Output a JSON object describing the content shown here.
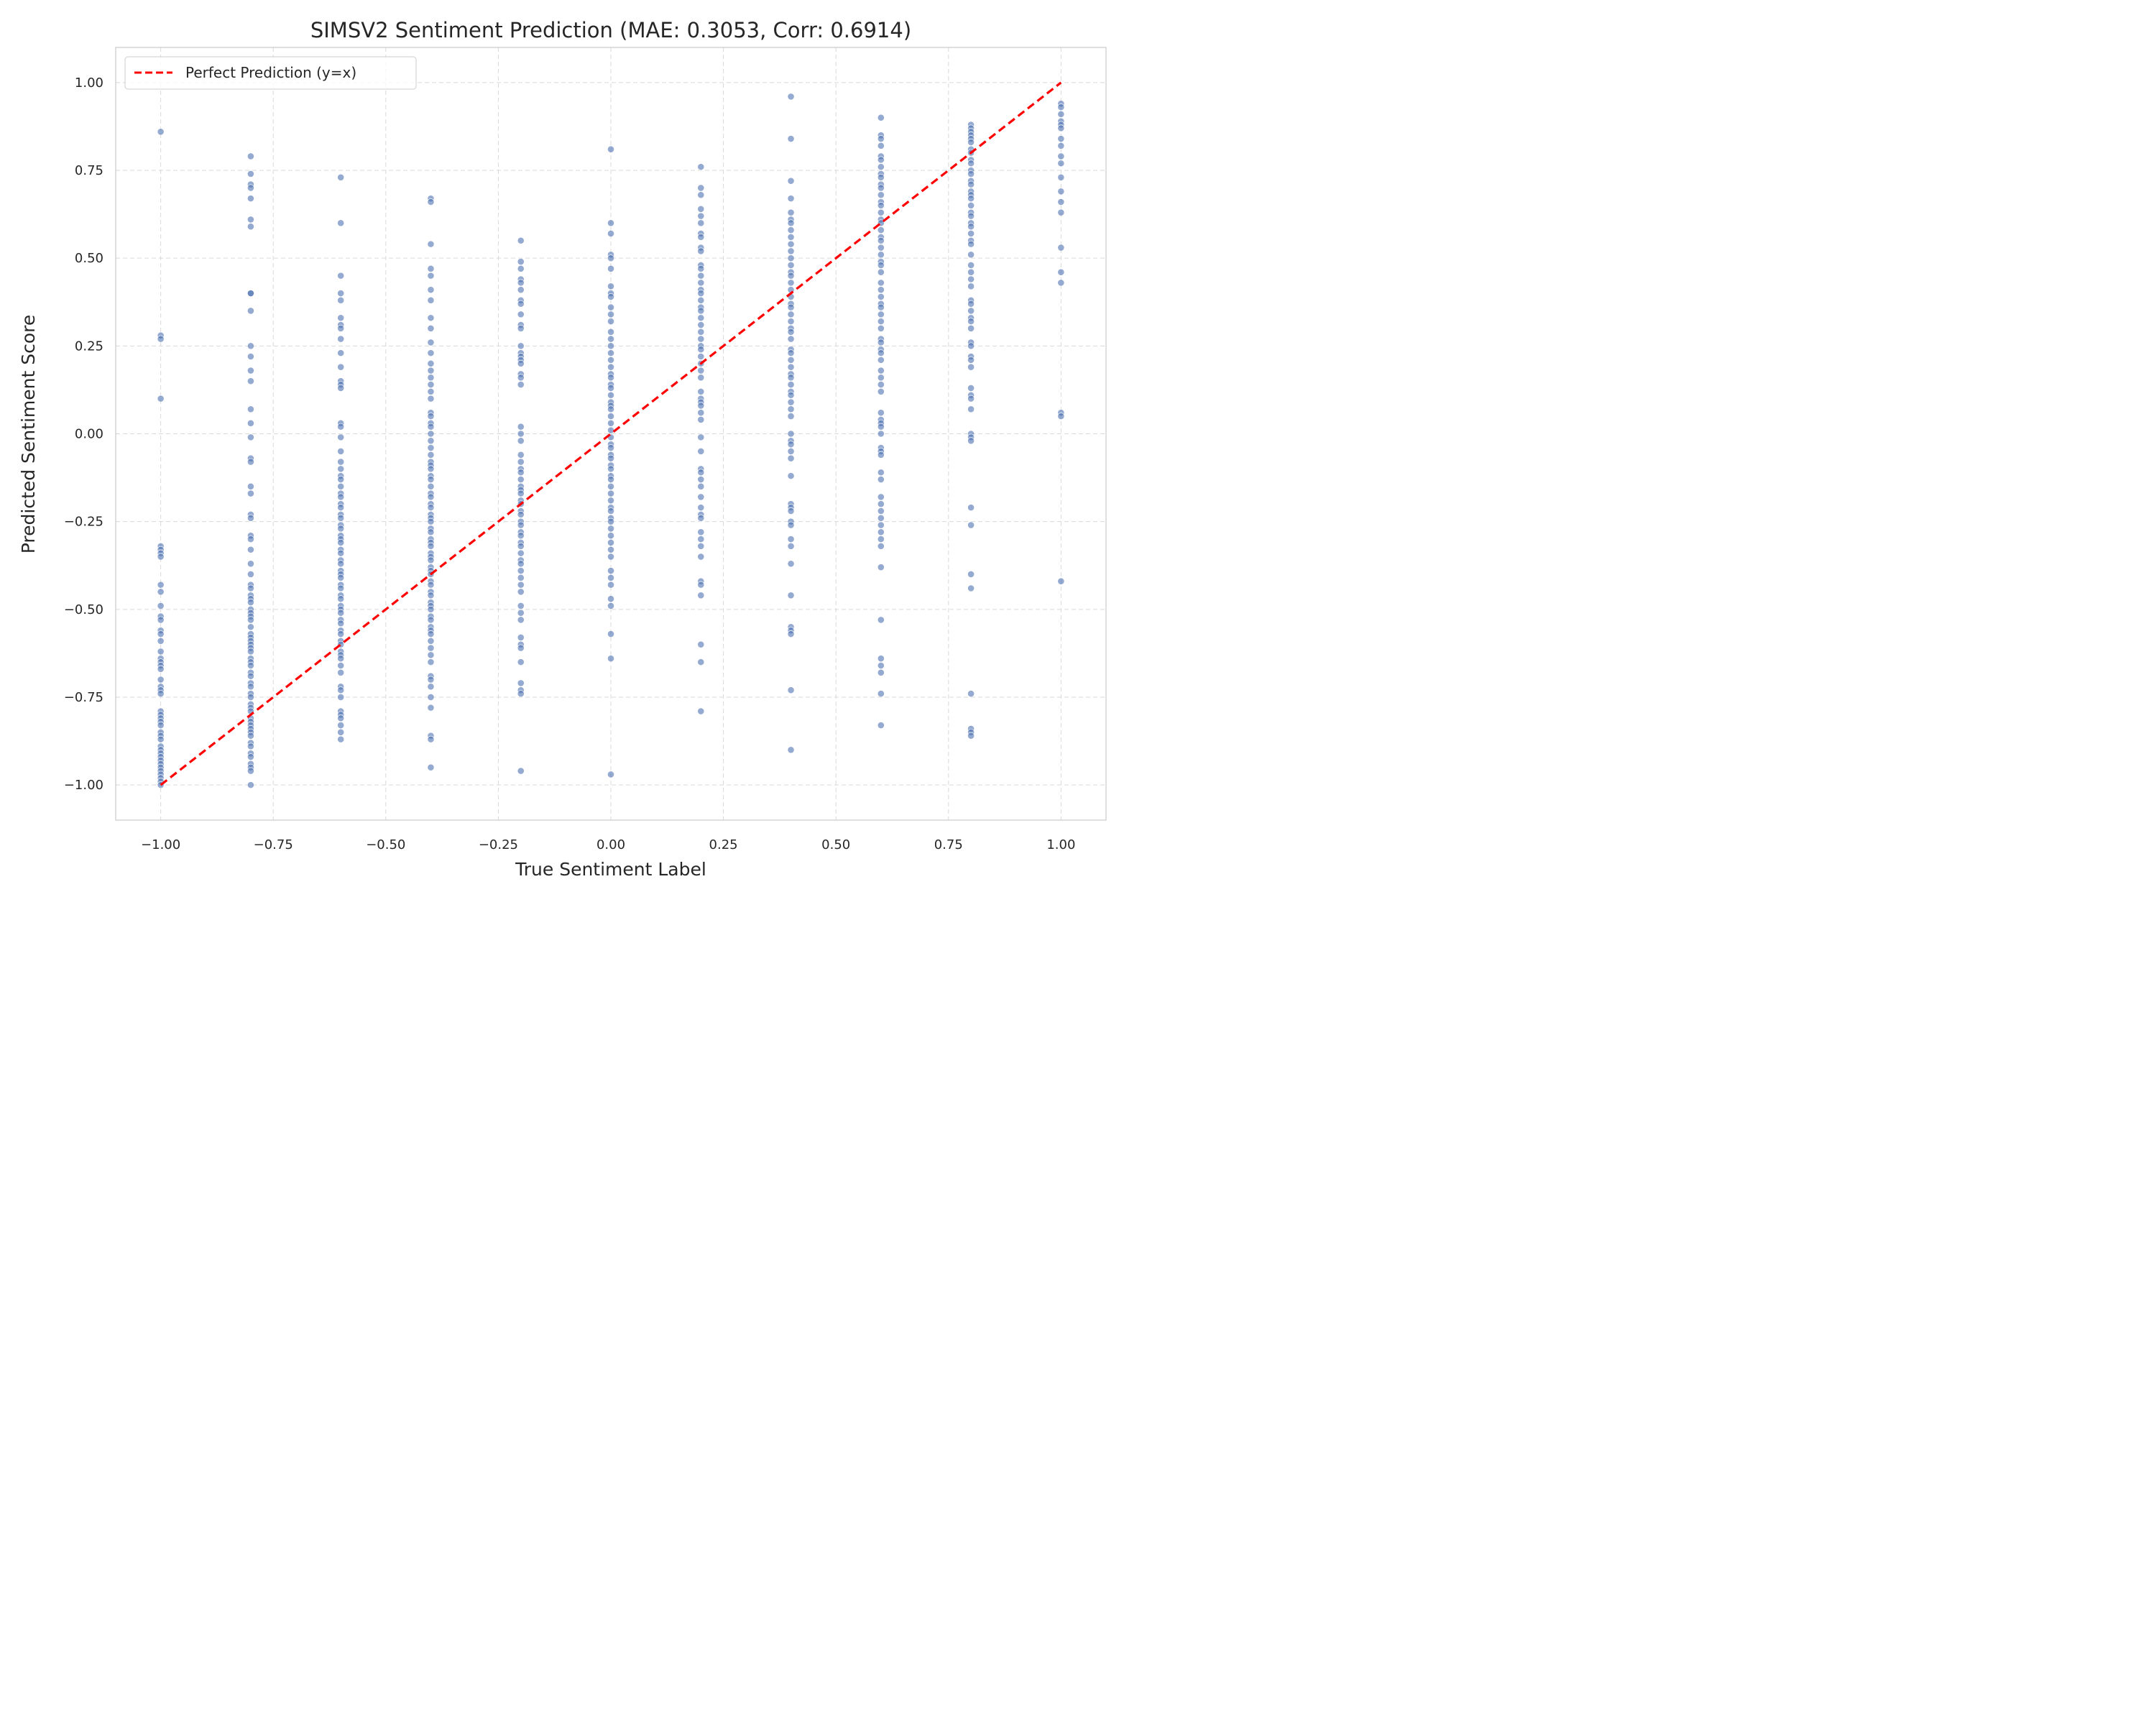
{
  "chart_data": {
    "type": "scatter",
    "title": "SIMSV2 Sentiment Prediction (MAE: 0.3053, Corr: 0.6914)",
    "xlabel": "True Sentiment Label",
    "ylabel": "Predicted Sentiment Score",
    "xlim": [
      -1.1,
      1.1
    ],
    "ylim": [
      -1.1,
      1.1
    ],
    "grid": true,
    "legend_position": "upper-left",
    "x_ticks": [
      -1.0,
      -0.75,
      -0.5,
      -0.25,
      0.0,
      0.25,
      0.5,
      0.75,
      1.0
    ],
    "x_tick_labels": [
      "−1.00",
      "−0.75",
      "−0.50",
      "−0.25",
      "0.00",
      "0.25",
      "0.50",
      "0.75",
      "1.00"
    ],
    "y_ticks": [
      -1.0,
      -0.75,
      -0.5,
      -0.25,
      0.0,
      0.25,
      0.5,
      0.75,
      1.0
    ],
    "y_tick_labels": [
      "−1.00",
      "−0.75",
      "−0.50",
      "−0.25",
      "0.00",
      "0.25",
      "0.50",
      "0.75",
      "1.00"
    ],
    "colors": {
      "points": "#4c72b0",
      "reference_line": "#ff0000",
      "grid": "#d9d9d9",
      "spine": "#cccccc"
    },
    "reference_line": {
      "name": "Perfect Prediction (y=x)",
      "x": [
        -1.0,
        1.0
      ],
      "y": [
        -1.0,
        1.0
      ],
      "style": "dashed"
    },
    "series": [
      {
        "x": -1.0,
        "y": [
          0.86,
          0.28,
          0.27,
          0.1,
          -0.32,
          -0.33,
          -0.34,
          -0.35,
          -0.43,
          -0.45,
          -0.49,
          -0.52,
          -0.53,
          -0.56,
          -0.57,
          -0.59,
          -0.62,
          -0.64,
          -0.65,
          -0.66,
          -0.67,
          -0.7,
          -0.72,
          -0.73,
          -0.74,
          -0.79,
          -0.8,
          -0.81,
          -0.82,
          -0.83,
          -0.85,
          -0.86,
          -0.87,
          -0.89,
          -0.9,
          -0.91,
          -0.92,
          -0.93,
          -0.94,
          -0.95,
          -0.96,
          -0.97,
          -0.98,
          -0.99,
          -1.0
        ]
      },
      {
        "x": -0.8,
        "y": [
          0.79,
          0.74,
          0.71,
          0.7,
          0.67,
          0.61,
          0.59,
          0.4,
          0.4,
          0.35,
          0.25,
          0.22,
          0.18,
          0.15,
          0.07,
          0.03,
          -0.01,
          -0.07,
          -0.08,
          -0.15,
          -0.17,
          -0.23,
          -0.24,
          -0.29,
          -0.3,
          -0.33,
          -0.37,
          -0.4,
          -0.43,
          -0.44,
          -0.46,
          -0.47,
          -0.48,
          -0.5,
          -0.51,
          -0.52,
          -0.53,
          -0.55,
          -0.57,
          -0.58,
          -0.59,
          -0.6,
          -0.61,
          -0.62,
          -0.64,
          -0.65,
          -0.66,
          -0.68,
          -0.69,
          -0.71,
          -0.72,
          -0.74,
          -0.75,
          -0.77,
          -0.78,
          -0.79,
          -0.81,
          -0.82,
          -0.83,
          -0.84,
          -0.85,
          -0.86,
          -0.88,
          -0.89,
          -0.91,
          -0.92,
          -0.94,
          -0.95,
          -0.96,
          -1.0
        ]
      },
      {
        "x": -0.6,
        "y": [
          0.73,
          0.6,
          0.45,
          0.4,
          0.38,
          0.33,
          0.31,
          0.3,
          0.27,
          0.23,
          0.19,
          0.15,
          0.14,
          0.13,
          0.03,
          0.02,
          -0.01,
          -0.05,
          -0.08,
          -0.1,
          -0.12,
          -0.13,
          -0.15,
          -0.17,
          -0.18,
          -0.2,
          -0.21,
          -0.23,
          -0.24,
          -0.26,
          -0.27,
          -0.29,
          -0.3,
          -0.31,
          -0.33,
          -0.34,
          -0.36,
          -0.37,
          -0.39,
          -0.4,
          -0.41,
          -0.43,
          -0.44,
          -0.46,
          -0.47,
          -0.49,
          -0.5,
          -0.51,
          -0.53,
          -0.54,
          -0.56,
          -0.57,
          -0.59,
          -0.6,
          -0.62,
          -0.63,
          -0.64,
          -0.66,
          -0.68,
          -0.72,
          -0.73,
          -0.75,
          -0.79,
          -0.8,
          -0.81,
          -0.83,
          -0.85,
          -0.87
        ]
      },
      {
        "x": -0.4,
        "y": [
          0.67,
          0.66,
          0.54,
          0.47,
          0.45,
          0.41,
          0.38,
          0.33,
          0.3,
          0.26,
          0.23,
          0.2,
          0.18,
          0.16,
          0.14,
          0.12,
          0.1,
          0.06,
          0.05,
          0.03,
          0.02,
          0.0,
          -0.02,
          -0.04,
          -0.06,
          -0.08,
          -0.09,
          -0.1,
          -0.12,
          -0.13,
          -0.15,
          -0.17,
          -0.18,
          -0.2,
          -0.21,
          -0.23,
          -0.24,
          -0.25,
          -0.27,
          -0.28,
          -0.3,
          -0.31,
          -0.32,
          -0.34,
          -0.35,
          -0.36,
          -0.38,
          -0.39,
          -0.4,
          -0.42,
          -0.43,
          -0.45,
          -0.46,
          -0.48,
          -0.49,
          -0.5,
          -0.52,
          -0.53,
          -0.55,
          -0.56,
          -0.57,
          -0.59,
          -0.61,
          -0.63,
          -0.65,
          -0.69,
          -0.7,
          -0.72,
          -0.75,
          -0.78,
          -0.86,
          -0.87,
          -0.95
        ]
      },
      {
        "x": -0.2,
        "y": [
          0.55,
          0.49,
          0.47,
          0.44,
          0.43,
          0.41,
          0.38,
          0.37,
          0.34,
          0.31,
          0.3,
          0.25,
          0.23,
          0.22,
          0.21,
          0.2,
          0.17,
          0.16,
          0.14,
          0.02,
          0.0,
          -0.02,
          -0.06,
          -0.08,
          -0.1,
          -0.11,
          -0.13,
          -0.15,
          -0.16,
          -0.17,
          -0.19,
          -0.2,
          -0.22,
          -0.23,
          -0.25,
          -0.26,
          -0.28,
          -0.29,
          -0.31,
          -0.32,
          -0.34,
          -0.36,
          -0.37,
          -0.39,
          -0.41,
          -0.43,
          -0.45,
          -0.49,
          -0.51,
          -0.53,
          -0.58,
          -0.6,
          -0.61,
          -0.65,
          -0.71,
          -0.73,
          -0.74,
          -0.96
        ]
      },
      {
        "x": 0.0,
        "y": [
          0.81,
          0.6,
          0.57,
          0.51,
          0.5,
          0.47,
          0.42,
          0.4,
          0.39,
          0.36,
          0.34,
          0.32,
          0.29,
          0.27,
          0.25,
          0.23,
          0.21,
          0.19,
          0.17,
          0.16,
          0.14,
          0.13,
          0.11,
          0.09,
          0.08,
          0.07,
          0.05,
          0.03,
          0.01,
          -0.01,
          -0.03,
          -0.04,
          -0.06,
          -0.07,
          -0.09,
          -0.1,
          -0.12,
          -0.13,
          -0.15,
          -0.17,
          -0.19,
          -0.21,
          -0.22,
          -0.24,
          -0.25,
          -0.27,
          -0.29,
          -0.31,
          -0.33,
          -0.35,
          -0.39,
          -0.41,
          -0.43,
          -0.47,
          -0.49,
          -0.57,
          -0.64,
          -0.97
        ]
      },
      {
        "x": 0.2,
        "y": [
          0.76,
          0.7,
          0.68,
          0.64,
          0.62,
          0.6,
          0.57,
          0.56,
          0.53,
          0.52,
          0.48,
          0.47,
          0.45,
          0.43,
          0.41,
          0.4,
          0.38,
          0.36,
          0.35,
          0.33,
          0.31,
          0.29,
          0.27,
          0.25,
          0.24,
          0.22,
          0.2,
          0.18,
          0.16,
          0.12,
          0.1,
          0.09,
          0.08,
          0.06,
          0.04,
          -0.01,
          -0.05,
          -0.1,
          -0.11,
          -0.13,
          -0.15,
          -0.18,
          -0.21,
          -0.23,
          -0.24,
          -0.28,
          -0.3,
          -0.32,
          -0.35,
          -0.42,
          -0.43,
          -0.46,
          -0.6,
          -0.65,
          -0.79
        ]
      },
      {
        "x": 0.4,
        "y": [
          0.96,
          0.84,
          0.72,
          0.67,
          0.63,
          0.61,
          0.6,
          0.58,
          0.56,
          0.54,
          0.52,
          0.5,
          0.48,
          0.46,
          0.45,
          0.43,
          0.41,
          0.39,
          0.37,
          0.36,
          0.34,
          0.32,
          0.3,
          0.29,
          0.27,
          0.24,
          0.23,
          0.21,
          0.19,
          0.17,
          0.16,
          0.14,
          0.12,
          0.11,
          0.09,
          0.07,
          0.05,
          0.0,
          -0.02,
          -0.03,
          -0.05,
          -0.07,
          -0.12,
          -0.2,
          -0.21,
          -0.22,
          -0.25,
          -0.26,
          -0.3,
          -0.32,
          -0.37,
          -0.46,
          -0.55,
          -0.56,
          -0.57,
          -0.73,
          -0.9
        ]
      },
      {
        "x": 0.6,
        "y": [
          0.9,
          0.85,
          0.84,
          0.82,
          0.79,
          0.78,
          0.76,
          0.74,
          0.73,
          0.71,
          0.7,
          0.68,
          0.66,
          0.65,
          0.63,
          0.61,
          0.6,
          0.58,
          0.56,
          0.55,
          0.53,
          0.51,
          0.49,
          0.48,
          0.46,
          0.43,
          0.41,
          0.39,
          0.37,
          0.36,
          0.34,
          0.32,
          0.3,
          0.27,
          0.26,
          0.24,
          0.23,
          0.21,
          0.18,
          0.16,
          0.14,
          0.12,
          0.06,
          0.04,
          0.03,
          0.02,
          0.0,
          -0.04,
          -0.05,
          -0.06,
          -0.11,
          -0.13,
          -0.18,
          -0.2,
          -0.22,
          -0.24,
          -0.26,
          -0.28,
          -0.3,
          -0.32,
          -0.38,
          -0.53,
          -0.64,
          -0.66,
          -0.68,
          -0.74,
          -0.83
        ]
      },
      {
        "x": 0.8,
        "y": [
          0.88,
          0.87,
          0.86,
          0.85,
          0.84,
          0.83,
          0.81,
          0.8,
          0.78,
          0.77,
          0.75,
          0.74,
          0.72,
          0.71,
          0.69,
          0.68,
          0.67,
          0.65,
          0.63,
          0.62,
          0.6,
          0.59,
          0.57,
          0.55,
          0.54,
          0.51,
          0.48,
          0.46,
          0.44,
          0.42,
          0.38,
          0.37,
          0.35,
          0.33,
          0.32,
          0.3,
          0.26,
          0.25,
          0.22,
          0.21,
          0.19,
          0.13,
          0.11,
          0.1,
          0.07,
          0.0,
          -0.01,
          -0.02,
          -0.21,
          -0.26,
          -0.4,
          -0.44,
          -0.74,
          -0.84,
          -0.85,
          -0.86
        ]
      },
      {
        "x": 1.0,
        "y": [
          0.94,
          0.93,
          0.91,
          0.89,
          0.88,
          0.87,
          0.84,
          0.82,
          0.79,
          0.77,
          0.73,
          0.69,
          0.66,
          0.63,
          0.53,
          0.46,
          0.43,
          0.06,
          0.05,
          -0.42
        ]
      }
    ]
  }
}
